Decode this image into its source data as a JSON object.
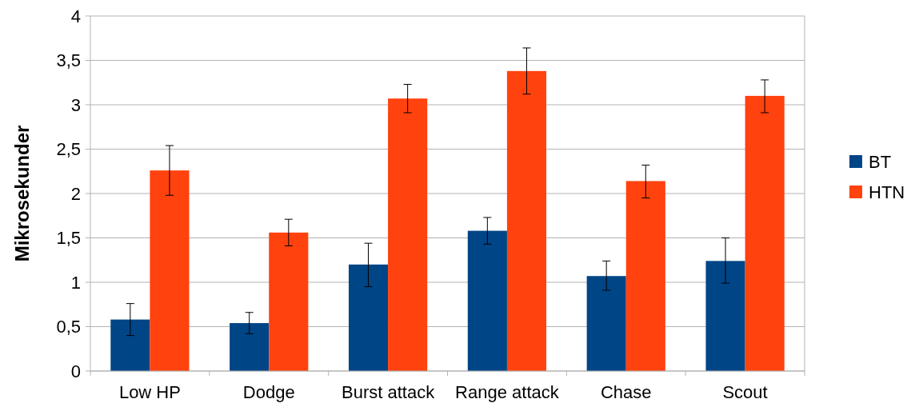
{
  "chart_data": {
    "type": "bar",
    "ylabel": "Mikrosekunder",
    "categories": [
      "Low HP",
      "Dodge",
      "Burst attack",
      "Range attack",
      "Chase",
      "Scout"
    ],
    "series": [
      {
        "name": "BT",
        "color": "#004586",
        "values": [
          0.58,
          0.54,
          1.2,
          1.58,
          1.07,
          1.24
        ],
        "errors": [
          [
            0.4,
            0.76
          ],
          [
            0.42,
            0.66
          ],
          [
            0.95,
            1.44
          ],
          [
            1.43,
            1.73
          ],
          [
            0.91,
            1.24
          ],
          [
            0.99,
            1.5
          ]
        ]
      },
      {
        "name": "HTN",
        "color": "#ff420e",
        "values": [
          2.26,
          1.56,
          3.07,
          3.38,
          2.14,
          3.1
        ],
        "errors": [
          [
            1.98,
            2.54
          ],
          [
            1.41,
            1.71
          ],
          [
            2.91,
            3.23
          ],
          [
            3.12,
            3.64
          ],
          [
            1.95,
            2.32
          ],
          [
            2.91,
            3.28
          ]
        ]
      }
    ],
    "ylim": [
      0,
      4
    ],
    "yticks": [
      0,
      {
        "value": 0.5,
        "label": "0,5"
      },
      1,
      {
        "value": 1.5,
        "label": "1,5"
      },
      2,
      {
        "value": 2.5,
        "label": "2,5"
      },
      3,
      {
        "value": 3.5,
        "label": "3,5"
      },
      4
    ],
    "grid": "y",
    "legend": "right"
  }
}
